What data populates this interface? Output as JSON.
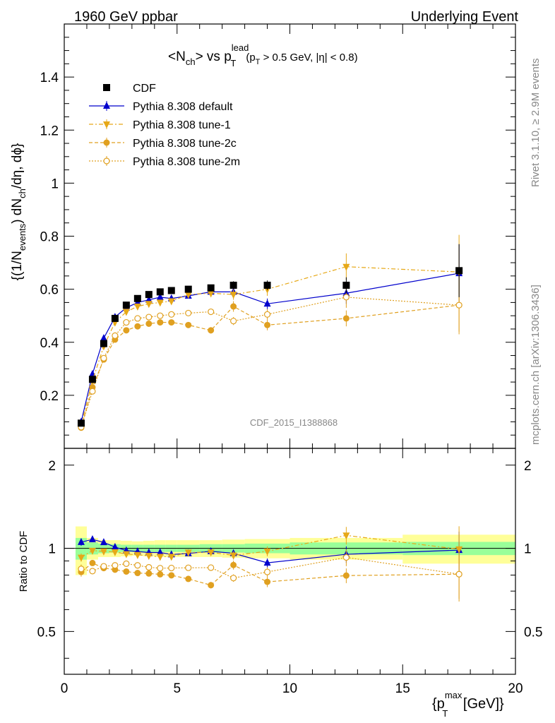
{
  "header": {
    "left": "1960 GeV ppbar",
    "right": "Underlying Event"
  },
  "title": {
    "main": "<N",
    "sub_ch": "ch",
    "mid": "> vs p",
    "sup_lead": "lead",
    "sub_t": "T",
    "cut_open": "(p",
    "cut_sub": "T",
    "cut_rest": " > 0.5 GeV, |η| < 0.8)"
  },
  "ylabel": {
    "p1": "{(1/N",
    "sub1": "events",
    "p2": ") dN",
    "sub2": "ch",
    "p3": "/dη, dϕ}"
  },
  "ratio_ylabel": "Ratio to CDF",
  "xlabel": {
    "p1": "{p",
    "sup": "max",
    "sub": "T",
    "p2": " [GeV]}"
  },
  "side_right_top": "Rivet 3.1.10, ≥ 2.9M events",
  "side_right_bottom": "mcplots.cern.ch [arXiv:1306.3436]",
  "watermark": "CDF_2015_I1388868",
  "legend": [
    {
      "label": "CDF",
      "marker": "square",
      "color": "#000000",
      "dash": ""
    },
    {
      "label": "Pythia 8.308 default",
      "marker": "triangle-up",
      "color": "#0000cc",
      "dash": ""
    },
    {
      "label": "Pythia 8.308 tune-1",
      "marker": "triangle-down",
      "color": "#e6a817",
      "dash": "6,3,2,3"
    },
    {
      "label": "Pythia 8.308 tune-2c",
      "marker": "circle",
      "color": "#e0a020",
      "dash": "5,3"
    },
    {
      "label": "Pythia 8.308 tune-2m",
      "marker": "circle-open",
      "color": "#e0a020",
      "dash": "2,2"
    }
  ],
  "chart_data": {
    "type": "scatter",
    "xlim": [
      0,
      20
    ],
    "ylim": [
      0,
      1.6
    ],
    "ratio_ylim": [
      0.35,
      2.3
    ],
    "x_ticks": [
      "0",
      "5",
      "10",
      "15",
      "20"
    ],
    "y_ticks": [
      "0.2",
      "0.4",
      "0.6",
      "0.8",
      "1",
      "1.2",
      "1.4"
    ],
    "ratio_ticks": [
      "0.5",
      "1",
      "2"
    ],
    "x": [
      0.75,
      1.25,
      1.75,
      2.25,
      2.75,
      3.25,
      3.75,
      4.25,
      4.75,
      5.5,
      6.5,
      7.5,
      9.0,
      12.5,
      17.5
    ],
    "series": [
      {
        "name": "CDF",
        "values": [
          0.095,
          0.26,
          0.395,
          0.49,
          0.54,
          0.565,
          0.58,
          0.59,
          0.595,
          0.6,
          0.605,
          0.615,
          0.615,
          0.615,
          0.67
        ],
        "errors": [
          0.005,
          0.008,
          0.01,
          0.01,
          0.01,
          0.01,
          0.01,
          0.01,
          0.01,
          0.01,
          0.012,
          0.015,
          0.018,
          0.03,
          0.1
        ]
      },
      {
        "name": "Pythia 8.308 default",
        "values": [
          0.1,
          0.28,
          0.415,
          0.495,
          0.53,
          0.55,
          0.56,
          0.57,
          0.565,
          0.575,
          0.59,
          0.59,
          0.545,
          0.585,
          0.66
        ],
        "errors": [
          0.003,
          0.004,
          0.005,
          0.005,
          0.006,
          0.006,
          0.007,
          0.008,
          0.009,
          0.01,
          0.012,
          0.015,
          0.02,
          0.04,
          0.11
        ]
      },
      {
        "name": "Pythia 8.308 tune-1",
        "values": [
          0.088,
          0.255,
          0.385,
          0.475,
          0.515,
          0.535,
          0.545,
          0.55,
          0.555,
          0.58,
          0.585,
          0.58,
          0.6,
          0.685,
          0.665
        ],
        "errors": [
          0.003,
          0.004,
          0.005,
          0.005,
          0.006,
          0.006,
          0.007,
          0.008,
          0.009,
          0.01,
          0.015,
          0.02,
          0.025,
          0.05,
          0.14
        ]
      },
      {
        "name": "Pythia 8.308 tune-2c",
        "values": [
          0.078,
          0.23,
          0.335,
          0.41,
          0.445,
          0.46,
          0.47,
          0.475,
          0.475,
          0.465,
          0.445,
          0.535,
          0.465,
          0.49,
          0.54
        ],
        "errors": [
          0.003,
          0.004,
          0.005,
          0.005,
          0.006,
          0.006,
          0.007,
          0.008,
          0.009,
          0.01,
          0.012,
          0.02,
          0.02,
          0.03,
          0.11
        ]
      },
      {
        "name": "Pythia 8.308 tune-2m",
        "values": [
          0.08,
          0.215,
          0.34,
          0.425,
          0.475,
          0.49,
          0.495,
          0.5,
          0.505,
          0.51,
          0.515,
          0.48,
          0.505,
          0.57,
          0.54
        ],
        "errors": [
          0.003,
          0.004,
          0.005,
          0.005,
          0.006,
          0.006,
          0.007,
          0.008,
          0.009,
          0.01,
          0.012,
          0.015,
          0.02,
          0.04,
          0.1
        ]
      }
    ],
    "ratio_bands": [
      {
        "x0": 0.5,
        "x1": 1.0,
        "inner": 0.09,
        "outer": 0.2
      },
      {
        "x0": 1.0,
        "x1": 1.5,
        "inner": 0.05,
        "outer": 0.09
      },
      {
        "x0": 1.5,
        "x1": 2.0,
        "inner": 0.04,
        "outer": 0.07
      },
      {
        "x0": 2.0,
        "x1": 2.5,
        "inner": 0.035,
        "outer": 0.07
      },
      {
        "x0": 2.5,
        "x1": 3.0,
        "inner": 0.03,
        "outer": 0.065
      },
      {
        "x0": 3.0,
        "x1": 3.5,
        "inner": 0.03,
        "outer": 0.06
      },
      {
        "x0": 3.5,
        "x1": 4.0,
        "inner": 0.03,
        "outer": 0.065
      },
      {
        "x0": 4.0,
        "x1": 4.5,
        "inner": 0.03,
        "outer": 0.07
      },
      {
        "x0": 4.5,
        "x1": 5.0,
        "inner": 0.03,
        "outer": 0.07
      },
      {
        "x0": 5.0,
        "x1": 6.0,
        "inner": 0.03,
        "outer": 0.07
      },
      {
        "x0": 6.0,
        "x1": 7.0,
        "inner": 0.035,
        "outer": 0.07
      },
      {
        "x0": 7.0,
        "x1": 8.0,
        "inner": 0.035,
        "outer": 0.075
      },
      {
        "x0": 8.0,
        "x1": 10.0,
        "inner": 0.04,
        "outer": 0.08
      },
      {
        "x0": 10.0,
        "x1": 15.0,
        "inner": 0.05,
        "outer": 0.09
      },
      {
        "x0": 15.0,
        "x1": 20.0,
        "inner": 0.055,
        "outer": 0.12
      }
    ],
    "colors": {
      "band_inner": "#99ff99",
      "band_outer": "#ffff99"
    }
  }
}
